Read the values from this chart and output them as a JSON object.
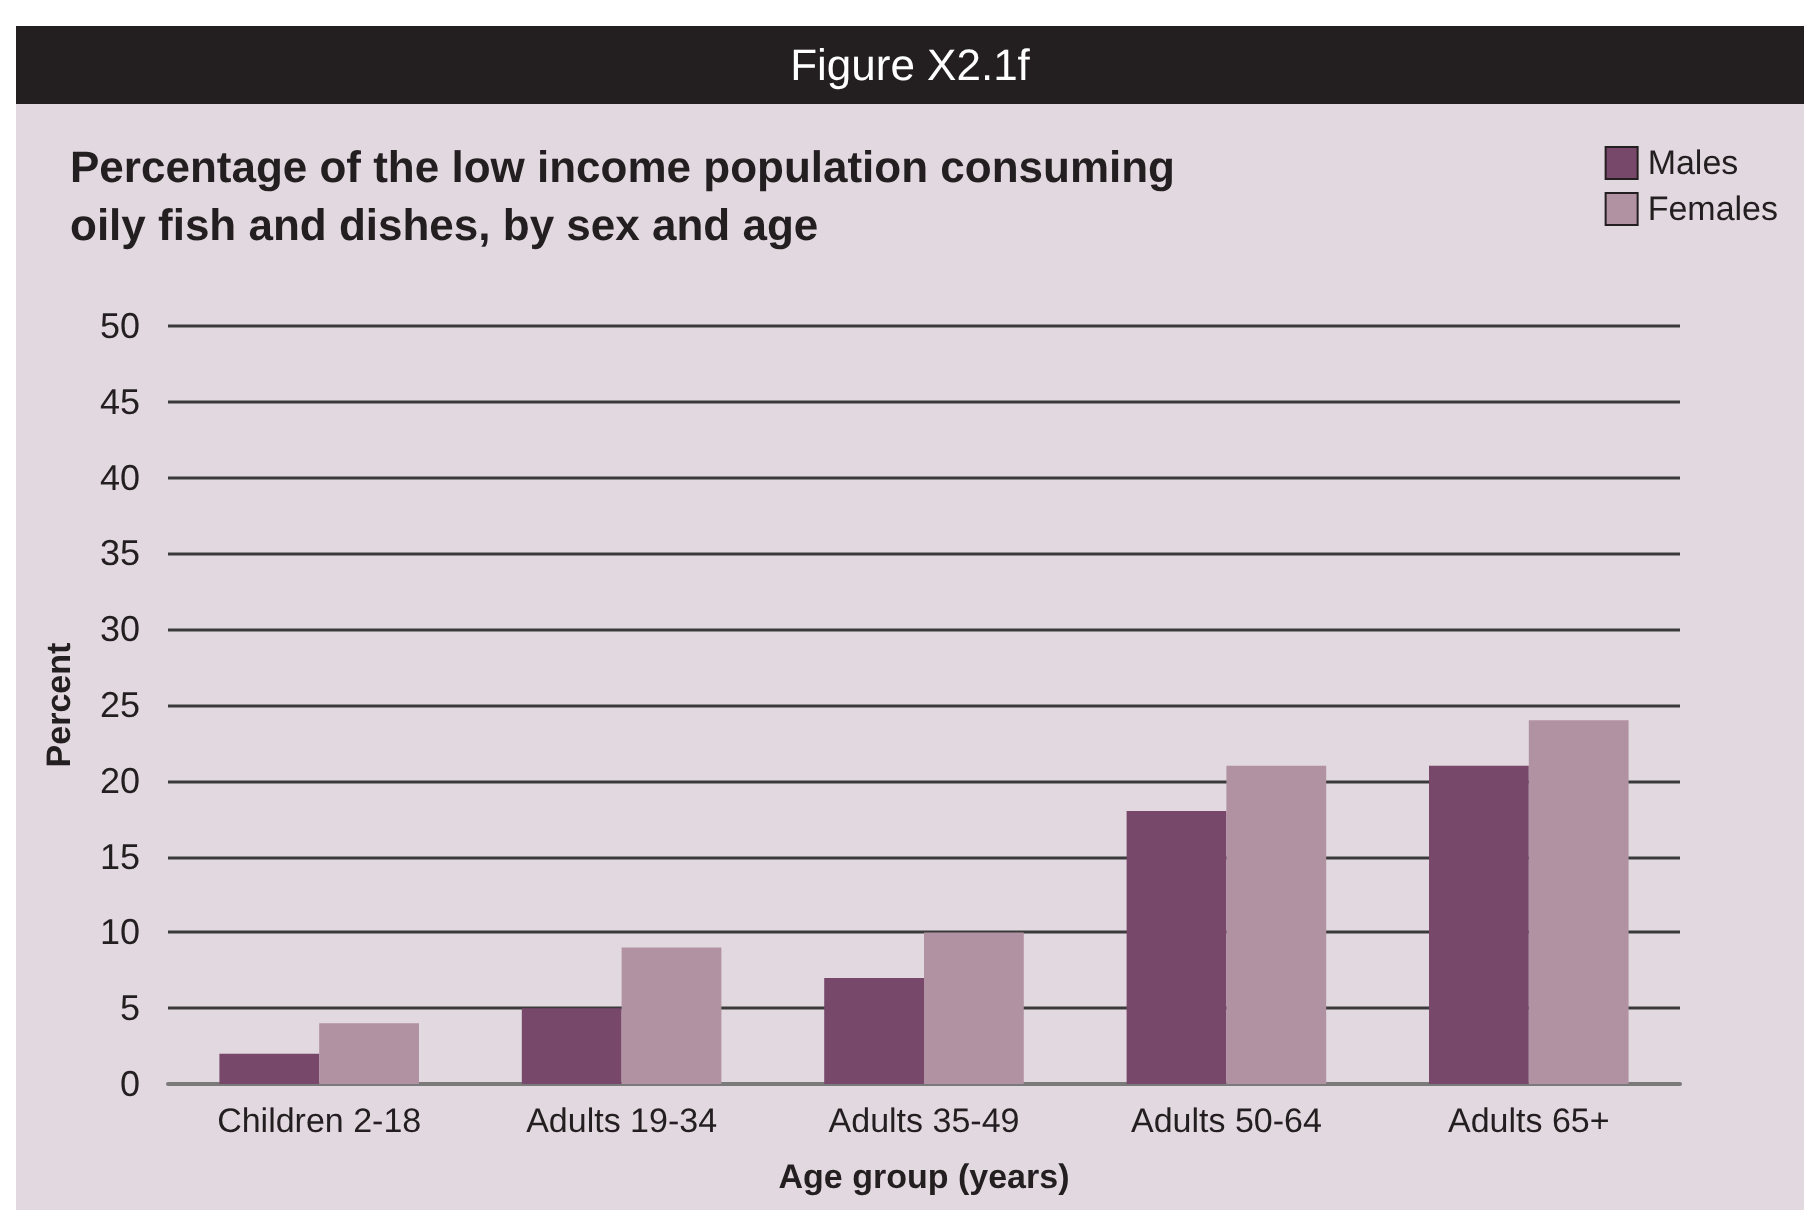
{
  "chart_data": {
    "type": "bar",
    "annotations": [
      "Figure X2.1f"
    ],
    "title": "Percentage of the low income population consuming oily fish and dishes, by sex and age",
    "xlabel": "Age group (years)",
    "ylabel": "Percent",
    "categories": [
      "Children 2-18",
      "Adults 19-34",
      "Adults 35-49",
      "Adults 50-64",
      "Adults 65+"
    ],
    "series": [
      {
        "name": "Males",
        "color": "#77486a",
        "values": [
          2,
          5,
          7,
          18,
          21
        ]
      },
      {
        "name": "Females",
        "color": "#b192a2",
        "values": [
          4,
          9,
          10,
          21,
          24
        ]
      }
    ],
    "ylim": [
      0,
      50
    ],
    "yticks": [
      0,
      5,
      10,
      15,
      20,
      25,
      30,
      35,
      40,
      45,
      50
    ],
    "grid": "y",
    "legend": "top right"
  }
}
